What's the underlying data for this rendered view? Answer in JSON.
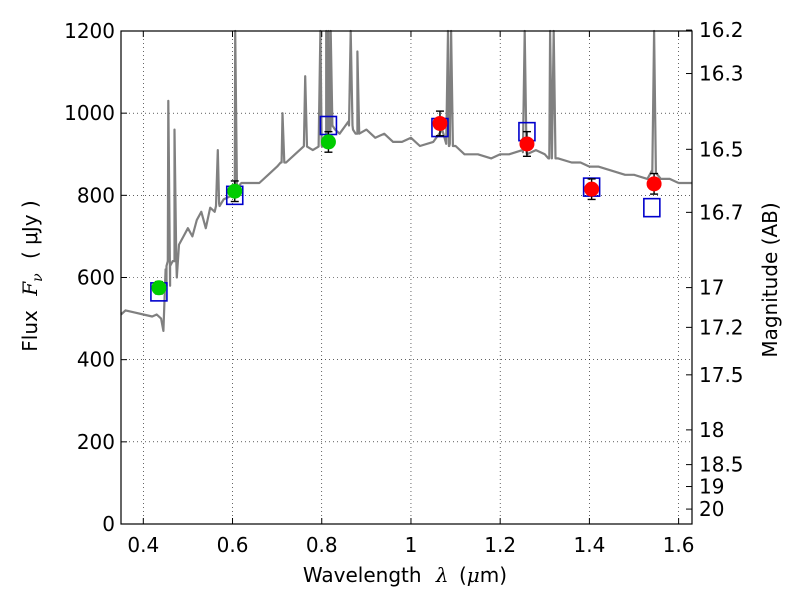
{
  "chart_data": {
    "type": "scatter",
    "xlabel_text": "Wavelength",
    "xlabel_symbol": "λ",
    "xlabel_unit_open": "(",
    "xlabel_unit_mu": "μ",
    "xlabel_unit_rest": "m)",
    "ylabel_text": "Flux",
    "ylabel_symbol": "F",
    "ylabel_subscript": "ν",
    "ylabel_unit": "( μJy )",
    "y2label": "Magnitude (AB)",
    "xlim": [
      0.35,
      1.63
    ],
    "ylim": [
      0,
      1200
    ],
    "x_ticks": [
      0.4,
      0.6,
      0.8,
      1.0,
      1.2,
      1.4,
      1.6
    ],
    "x_tick_labels": [
      "0.4",
      "0.6",
      "0.8",
      "1",
      "1.2",
      "1.4",
      "1.6"
    ],
    "y_ticks": [
      0,
      200,
      400,
      600,
      800,
      1000,
      1200
    ],
    "y_tick_labels": [
      "0",
      "200",
      "400",
      "600",
      "800",
      "1000",
      "1200"
    ],
    "mag_ticks": [
      16.2,
      16.3,
      16.5,
      16.7,
      17,
      17.2,
      17.5,
      18,
      18.5,
      19,
      20
    ],
    "mag_tick_labels": [
      "16.2",
      "16.3",
      "16.5",
      "16.7",
      "17",
      "17.2",
      "17.5",
      "18",
      "18.5",
      "19",
      "20"
    ],
    "grid": true,
    "colors": {
      "spectrum": "#808080",
      "model": "#0000cc",
      "optical": "#00cc00",
      "nir": "#ff0000",
      "errorbar": "#000000"
    },
    "series": [
      {
        "kind": "spectrum",
        "x": [
          0.35,
          0.36,
          0.38,
          0.4,
          0.42,
          0.43,
          0.44,
          0.445,
          0.45,
          0.452,
          0.455,
          0.46,
          0.47,
          0.475,
          0.48,
          0.49,
          0.5,
          0.51,
          0.52,
          0.53,
          0.54,
          0.55,
          0.56,
          0.57,
          0.58,
          0.6,
          0.605,
          0.61,
          0.62,
          0.64,
          0.66,
          0.68,
          0.7,
          0.71,
          0.72,
          0.74,
          0.76,
          0.78,
          0.8,
          0.81,
          0.82,
          0.83,
          0.84,
          0.86,
          0.87,
          0.88,
          0.9,
          0.92,
          0.94,
          0.96,
          0.98,
          1.0,
          1.02,
          1.05,
          1.07,
          1.085,
          1.1,
          1.12,
          1.15,
          1.18,
          1.2,
          1.22,
          1.25,
          1.26,
          1.28,
          1.3,
          1.31,
          1.33,
          1.36,
          1.38,
          1.4,
          1.42,
          1.45,
          1.48,
          1.5,
          1.53,
          1.54,
          1.56,
          1.58,
          1.6,
          1.63
        ],
        "y": [
          510,
          520,
          515,
          510,
          505,
          510,
          500,
          470,
          620,
          580,
          640,
          580,
          640,
          600,
          680,
          700,
          720,
          700,
          740,
          760,
          720,
          770,
          760,
          780,
          790,
          800,
          820,
          810,
          830,
          830,
          830,
          850,
          870,
          880,
          880,
          900,
          920,
          910,
          920,
          940,
          970,
          960,
          950,
          980,
          960,
          950,
          960,
          940,
          950,
          930,
          930,
          940,
          920,
          930,
          960,
          920,
          920,
          900,
          900,
          890,
          900,
          900,
          910,
          900,
          910,
          900,
          890,
          890,
          880,
          880,
          870,
          870,
          860,
          850,
          850,
          840,
          860,
          840,
          840,
          830,
          830
        ]
      },
      {
        "kind": "emission_lines",
        "x": [
          0.456,
          0.47,
          0.567,
          0.606,
          0.712,
          0.763,
          0.797,
          0.81,
          0.815,
          0.82,
          0.865,
          0.88,
          1.083,
          1.09,
          1.255,
          1.312,
          1.32,
          1.545
        ],
        "peak": [
          1030,
          960,
          910,
          1200,
          1000,
          1090,
          1200,
          1200,
          1200,
          1200,
          1200,
          1150,
          1200,
          1200,
          1200,
          1200,
          1200,
          1200
        ]
      },
      {
        "kind": "model",
        "marker": "square",
        "x": [
          0.435,
          0.605,
          0.815,
          1.065,
          1.26,
          1.405,
          1.54
        ],
        "y": [
          565,
          800,
          970,
          965,
          955,
          820,
          770
        ]
      },
      {
        "kind": "optical",
        "marker": "circle",
        "x": [
          0.435,
          0.605,
          0.815
        ],
        "y": [
          575,
          810,
          930
        ],
        "err": [
          15,
          25,
          25
        ]
      },
      {
        "kind": "nir",
        "marker": "circle",
        "x": [
          1.065,
          1.26,
          1.405,
          1.545
        ],
        "y": [
          975,
          925,
          815,
          828
        ],
        "err": [
          30,
          30,
          25,
          25
        ]
      }
    ]
  }
}
